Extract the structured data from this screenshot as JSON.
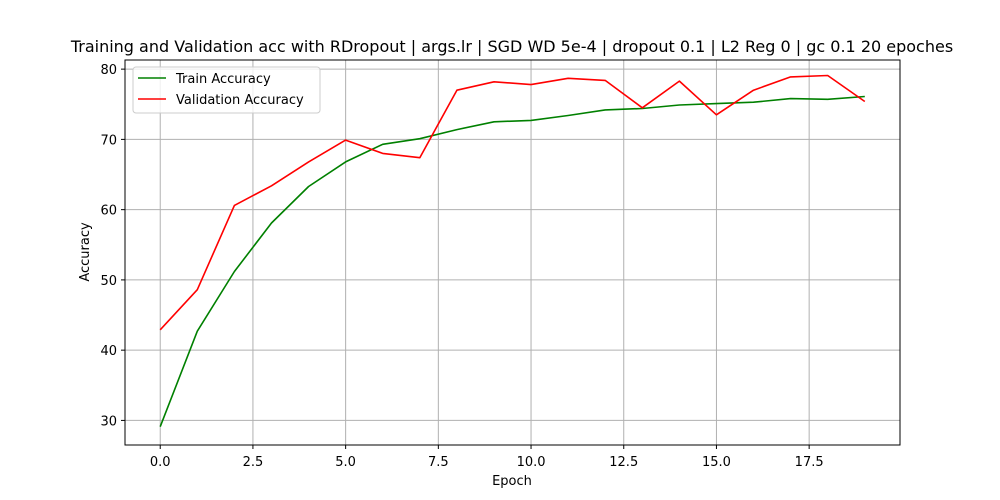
{
  "chart_data": {
    "type": "line",
    "title": "Training and Validation acc with RDropout | args.lr | SGD WD 5e-4 | dropout 0.1 | L2 Reg 0 | gc 0.1 20 epoches",
    "xlabel": "Epoch",
    "ylabel": "Accuracy",
    "xlim": [
      -0.95,
      19.95
    ],
    "ylim": [
      26.5,
      81.3
    ],
    "xticks": [
      0.0,
      2.5,
      5.0,
      7.5,
      10.0,
      12.5,
      15.0,
      17.5
    ],
    "xtick_labels": [
      "0.0",
      "2.5",
      "5.0",
      "7.5",
      "10.0",
      "12.5",
      "15.0",
      "17.5"
    ],
    "yticks": [
      30,
      40,
      50,
      60,
      70,
      80
    ],
    "ytick_labels": [
      "30",
      "40",
      "50",
      "60",
      "70",
      "80"
    ],
    "grid": true,
    "legend_position": "upper-left",
    "x": [
      0,
      1,
      2,
      3,
      4,
      5,
      6,
      7,
      8,
      9,
      10,
      11,
      12,
      13,
      14,
      15,
      16,
      17,
      18,
      19
    ],
    "series": [
      {
        "name": "Train Accuracy",
        "color": "#008000",
        "values": [
          29.1,
          42.7,
          51.2,
          58.1,
          63.3,
          66.8,
          69.3,
          70.1,
          71.4,
          72.5,
          72.7,
          73.4,
          74.2,
          74.4,
          74.9,
          75.1,
          75.3,
          75.8,
          75.7,
          76.1
        ]
      },
      {
        "name": "Validation Accuracy",
        "color": "#ff0000",
        "values": [
          42.9,
          48.6,
          60.6,
          63.4,
          66.8,
          69.9,
          68.0,
          67.4,
          77.0,
          78.2,
          77.8,
          78.7,
          78.4,
          74.5,
          78.3,
          73.5,
          77.0,
          78.9,
          79.1,
          75.4
        ]
      }
    ]
  }
}
